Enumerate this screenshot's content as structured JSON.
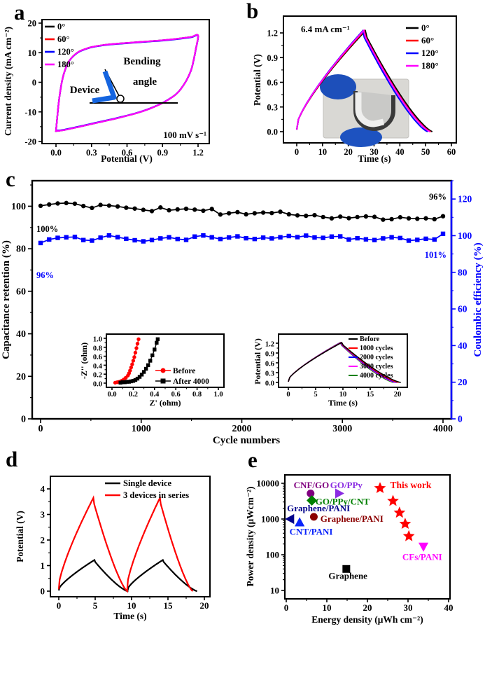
{
  "panel_labels": {
    "a": "a",
    "b": "b",
    "c": "c",
    "d": "d",
    "e": "e"
  },
  "chart_data": [
    {
      "id": "a",
      "type": "line",
      "kind": "cv",
      "xlabel": "Potential (V)",
      "ylabel": "Current density (mA cm⁻²)",
      "xlim": [
        0,
        1.2
      ],
      "ylim": [
        -20,
        20
      ],
      "xticks": [
        0,
        0.3,
        0.6,
        0.9,
        1.2
      ],
      "xtick_labels": [
        "0.0",
        "0.3",
        "0.6",
        "0.9",
        "1.2"
      ],
      "yticks": [
        20,
        10,
        0,
        -10,
        -20
      ],
      "legend": [
        {
          "label": "0°",
          "color": "#000000"
        },
        {
          "label": "60°",
          "color": "#FF0000"
        },
        {
          "label": "120°",
          "color": "#0000FF"
        },
        {
          "label": "180°",
          "color": "#FF00FF"
        }
      ],
      "annotation": "100 mV s⁻¹",
      "inset_text": {
        "device": "Device",
        "line1": "Bending",
        "line2": "angle"
      },
      "loop_upper": [
        [
          0,
          -16.5
        ],
        [
          0.02,
          -8
        ],
        [
          0.04,
          -2
        ],
        [
          0.06,
          2
        ],
        [
          0.08,
          4.5
        ],
        [
          0.1,
          6.5
        ],
        [
          0.13,
          8.2
        ],
        [
          0.16,
          9.4
        ],
        [
          0.2,
          10.5
        ],
        [
          0.25,
          11.3
        ],
        [
          0.3,
          11.9
        ],
        [
          0.4,
          12.6
        ],
        [
          0.5,
          13.0
        ],
        [
          0.6,
          13.3
        ],
        [
          0.7,
          13.6
        ],
        [
          0.8,
          13.9
        ],
        [
          0.9,
          14.2
        ],
        [
          1.0,
          14.6
        ],
        [
          1.1,
          15.1
        ],
        [
          1.15,
          15.4
        ],
        [
          1.2,
          15.8
        ]
      ],
      "loop_lower": [
        [
          1.18,
          11
        ],
        [
          1.16,
          7
        ],
        [
          1.14,
          4
        ],
        [
          1.1,
          0.5
        ],
        [
          1.05,
          -2.5
        ],
        [
          1.0,
          -4.5
        ],
        [
          0.9,
          -7
        ],
        [
          0.8,
          -8.8
        ],
        [
          0.7,
          -10.2
        ],
        [
          0.6,
          -11.3
        ],
        [
          0.5,
          -12.3
        ],
        [
          0.4,
          -13.2
        ],
        [
          0.3,
          -14.1
        ],
        [
          0.2,
          -15.0
        ],
        [
          0.12,
          -15.7
        ],
        [
          0.06,
          -16.2
        ],
        [
          0,
          -16.5
        ]
      ]
    },
    {
      "id": "b",
      "type": "line",
      "kind": "gcd",
      "xlabel": "Time (s)",
      "ylabel": "Potential (V)",
      "xlim": [
        0,
        60
      ],
      "ylim": [
        0,
        1.2
      ],
      "xticks": [
        0,
        10,
        20,
        30,
        40,
        50,
        60
      ],
      "yticks": [
        0,
        0.3,
        0.6,
        0.9,
        1.2
      ],
      "ytick_labels": [
        "0.0",
        "0.3",
        "0.6",
        "0.9",
        "1.2"
      ],
      "annotation": "6.4 mA cm⁻¹",
      "legend": [
        {
          "label": "0°",
          "color": "#000000"
        },
        {
          "label": "60°",
          "color": "#FF0000"
        },
        {
          "label": "120°",
          "color": "#0000FF"
        },
        {
          "label": "180°",
          "color": "#FF00FF"
        }
      ],
      "series": [
        {
          "label": "0°",
          "color": "#000000",
          "t_peak": 26.6,
          "t_end": 52.6,
          "vmax": 1.225
        },
        {
          "label": "60°",
          "color": "#FF0000",
          "t_peak": 26.2,
          "t_end": 52.0,
          "vmax": 1.225
        },
        {
          "label": "120°",
          "color": "#0000FF",
          "t_peak": 25.6,
          "t_end": 50.8,
          "vmax": 1.225
        },
        {
          "label": "180°",
          "color": "#FF00FF",
          "t_peak": 26.0,
          "t_end": 51.7,
          "vmax": 1.23
        }
      ]
    },
    {
      "id": "c",
      "type": "line",
      "xlabel": "Cycle numbers",
      "ylabel_left": "Capacitance retention (%)",
      "ylabel_right": "Coulombic efficiency (%)",
      "right_axis_color": "#0000FF",
      "xlim": [
        0,
        4000
      ],
      "xticks": [
        0,
        1000,
        2000,
        3000,
        4000
      ],
      "ylim_left": [
        0,
        112
      ],
      "yticks_left": [
        0,
        20,
        40,
        60,
        80,
        100
      ],
      "ylim_right": [
        0,
        130
      ],
      "yticks_right": [
        0,
        20,
        40,
        60,
        80,
        100,
        120
      ],
      "annotations": [
        {
          "text": "100%",
          "color": "#000000",
          "pos": "start-black"
        },
        {
          "text": "96%",
          "color": "#0000FF",
          "pos": "start-blue"
        },
        {
          "text": "96%",
          "color": "#000000",
          "pos": "end-black"
        },
        {
          "text": "101%",
          "color": "#0000FF",
          "pos": "end-blue"
        }
      ],
      "series": [
        {
          "name": "Capacitance retention",
          "axis": "left",
          "color": "#000000",
          "marker": "circle",
          "values": [
            100.2,
            100.8,
            101.3,
            101.5,
            101.2,
            100.1,
            99.2,
            100.6,
            100.3,
            99.9,
            99.3,
            98.9,
            98.3,
            97.7,
            99.4,
            98.1,
            98.5,
            98.8,
            98.4,
            97.9,
            98.7,
            96.1,
            96.7,
            97.2,
            96.2,
            96.7,
            97.0,
            96.8,
            97.4,
            96.2,
            95.7,
            95.5,
            95.8,
            94.9,
            94.3,
            95.1,
            94.4,
            94.9,
            95.2,
            95.0,
            93.7,
            93.9,
            94.8,
            94.3,
            94.1,
            94.3,
            93.9,
            95.3
          ]
        },
        {
          "name": "Coulombic efficiency",
          "axis": "right",
          "color": "#0000FF",
          "marker": "square",
          "values": [
            96.0,
            97.9,
            98.8,
            99.1,
            99.3,
            97.6,
            97.3,
            98.9,
            100.1,
            99.2,
            98.3,
            97.5,
            96.9,
            97.6,
            98.5,
            99.1,
            98.2,
            97.7,
            99.5,
            100.1,
            99.1,
            98.2,
            99.0,
            99.6,
            98.6,
            98.2,
            98.9,
            98.5,
            99.1,
            99.8,
            99.2,
            100.0,
            99.0,
            98.8,
            99.5,
            99.6,
            97.9,
            98.6,
            98.0,
            97.6,
            98.5,
            99.1,
            98.7,
            97.3,
            97.7,
            98.3,
            97.9,
            101.0
          ]
        }
      ]
    },
    {
      "id": "c_inset_nyquist",
      "type": "scatter",
      "xlabel": "Z' (ohm)",
      "ylabel": "-Z'' (ohm)",
      "xlim": [
        0,
        1
      ],
      "ylim": [
        0,
        1
      ],
      "xticks": [
        0,
        0.2,
        0.4,
        0.6,
        0.8,
        1.0
      ],
      "xtick_labels": [
        "0.0",
        "0.2",
        "0.4",
        "0.6",
        "0.8",
        "1.0"
      ],
      "yticks": [
        0,
        0.2,
        0.4,
        0.6,
        0.8,
        1.0
      ],
      "ytick_labels": [
        "0.0",
        "0.2",
        "0.4",
        "0.6",
        "0.8",
        "1.0"
      ],
      "series": [
        {
          "label": "Before",
          "color": "#FF0000",
          "marker": "circle",
          "points": [
            [
              0.03,
              0.01
            ],
            [
              0.05,
              0.02
            ],
            [
              0.07,
              0.03
            ],
            [
              0.09,
              0.05
            ],
            [
              0.11,
              0.08
            ],
            [
              0.13,
              0.12
            ],
            [
              0.15,
              0.17
            ],
            [
              0.16,
              0.22
            ],
            [
              0.17,
              0.28
            ],
            [
              0.18,
              0.35
            ],
            [
              0.19,
              0.42
            ],
            [
              0.2,
              0.5
            ],
            [
              0.21,
              0.58
            ],
            [
              0.22,
              0.68
            ],
            [
              0.23,
              0.78
            ],
            [
              0.24,
              0.88
            ],
            [
              0.25,
              0.98
            ]
          ]
        },
        {
          "label": "After 4000",
          "color": "#000000",
          "marker": "square",
          "points": [
            [
              0.08,
              0.01
            ],
            [
              0.1,
              0.02
            ],
            [
              0.12,
              0.02
            ],
            [
              0.14,
              0.03
            ],
            [
              0.16,
              0.03
            ],
            [
              0.18,
              0.04
            ],
            [
              0.2,
              0.05
            ],
            [
              0.22,
              0.07
            ],
            [
              0.24,
              0.1
            ],
            [
              0.26,
              0.14
            ],
            [
              0.28,
              0.19
            ],
            [
              0.3,
              0.25
            ],
            [
              0.32,
              0.32
            ],
            [
              0.34,
              0.4
            ],
            [
              0.36,
              0.5
            ],
            [
              0.38,
              0.62
            ],
            [
              0.4,
              0.75
            ],
            [
              0.42,
              0.9
            ],
            [
              0.43,
              0.98
            ]
          ]
        }
      ]
    },
    {
      "id": "c_inset_gcd",
      "type": "line",
      "kind": "gcd",
      "xlabel": "Time (s)",
      "ylabel": "Potential (V)",
      "xlim": [
        0,
        20
      ],
      "xticks": [
        0,
        5,
        10,
        15,
        20
      ],
      "ylim": [
        0,
        1.2
      ],
      "yticks": [
        0,
        0.3,
        0.6,
        0.9,
        1.2
      ],
      "ytick_labels": [
        "0.0",
        "0.3",
        "0.6",
        "0.9",
        "1.2"
      ],
      "series": [
        {
          "label": "Before",
          "color": "#000000",
          "t_peak": 9.8,
          "t_end": 20.6,
          "vmax": 1.22
        },
        {
          "label": "1000 cycles",
          "color": "#FF0000",
          "t_peak": 9.7,
          "t_end": 20.2,
          "vmax": 1.22
        },
        {
          "label": "2000 cycles",
          "color": "#0000FF",
          "t_peak": 9.62,
          "t_end": 19.9,
          "vmax": 1.22
        },
        {
          "label": "3000 cycles",
          "color": "#FF00FF",
          "t_peak": 9.55,
          "t_end": 19.6,
          "vmax": 1.22
        },
        {
          "label": "4000 cycles",
          "color": "#008000",
          "t_peak": 9.5,
          "t_end": 19.3,
          "vmax": 1.22
        }
      ]
    },
    {
      "id": "d",
      "type": "line",
      "kind": "gcd-multi",
      "xlabel": "Time (s)",
      "ylabel": "Potential (V)",
      "xlim": [
        0,
        20
      ],
      "xticks": [
        0,
        5,
        10,
        15,
        20
      ],
      "ylim": [
        0,
        4.3
      ],
      "yticks": [
        0,
        1,
        2,
        3,
        4
      ],
      "series": [
        {
          "label": "Single device",
          "color": "#000000",
          "vmax": 1.22,
          "cycles": [
            [
              0,
              4.9,
              9.45
            ],
            [
              9.45,
              14.3,
              19.0
            ]
          ]
        },
        {
          "label": "3 devices in series",
          "color": "#FF0000",
          "vmax": 3.65,
          "cycles": [
            [
              0,
              4.75,
              9.4
            ],
            [
              9.4,
              13.9,
              18.4
            ]
          ]
        }
      ]
    },
    {
      "id": "e",
      "type": "scatter",
      "xlabel": "Energy density (μWh cm⁻²)",
      "ylabel": "Power density (μWcm⁻²)",
      "xlim": [
        0,
        40
      ],
      "xticks": [
        0,
        10,
        20,
        30,
        40
      ],
      "yscale": "log",
      "ylim": [
        10,
        10000
      ],
      "yticks": [
        10,
        100,
        1000,
        10000
      ],
      "points": [
        {
          "label": "CNF/GO",
          "marker": "circle",
          "color": "#800080",
          "x": 6.0,
          "y": 5200,
          "lx": 6.2,
          "ly": 8800,
          "anchor": "middle"
        },
        {
          "label": "GO/PPy",
          "marker": "triangle-right",
          "color": "#8A2BE2",
          "x": 13.0,
          "y": 5200,
          "lx": 14.8,
          "ly": 8800,
          "anchor": "middle"
        },
        {
          "label": "GO/PPy/CNT",
          "marker": "diamond",
          "color": "#008000",
          "x": 6.3,
          "y": 3300,
          "lx": 7.2,
          "ly": 3050,
          "anchor": "start"
        },
        {
          "label": "Graphene/PANI",
          "marker": "triangle-left",
          "color": "#00008B",
          "x": 1.0,
          "y": 1000,
          "lx": 0.2,
          "ly": 1950,
          "anchor": "start"
        },
        {
          "label": "CNT/PANI",
          "marker": "triangle-up",
          "color": "#0B24FB",
          "x": 3.3,
          "y": 800,
          "lx": 0.8,
          "ly": 430,
          "anchor": "start"
        },
        {
          "label": "Graphene/PANI",
          "marker": "circle",
          "color": "#8B0000",
          "x": 6.8,
          "y": 1150,
          "lx": 8.4,
          "ly": 1000,
          "anchor": "start"
        },
        {
          "label": "Graphene",
          "marker": "square",
          "color": "#000000",
          "x": 14.8,
          "y": 40,
          "lx": 15.2,
          "ly": 25,
          "anchor": "middle"
        },
        {
          "label": "CFs/PANI",
          "marker": "triangle-down",
          "color": "#FF00FF",
          "x": 33.8,
          "y": 170,
          "lx": 33.5,
          "ly": 85,
          "anchor": "middle"
        }
      ],
      "this_work": {
        "label": "This work",
        "color": "#FF0000",
        "lx": 25.6,
        "ly": 8800,
        "anchor": "start",
        "stars": [
          [
            23.1,
            7300
          ],
          [
            26.3,
            3200
          ],
          [
            27.9,
            1500
          ],
          [
            29.3,
            730
          ],
          [
            30.2,
            330
          ]
        ]
      }
    }
  ]
}
